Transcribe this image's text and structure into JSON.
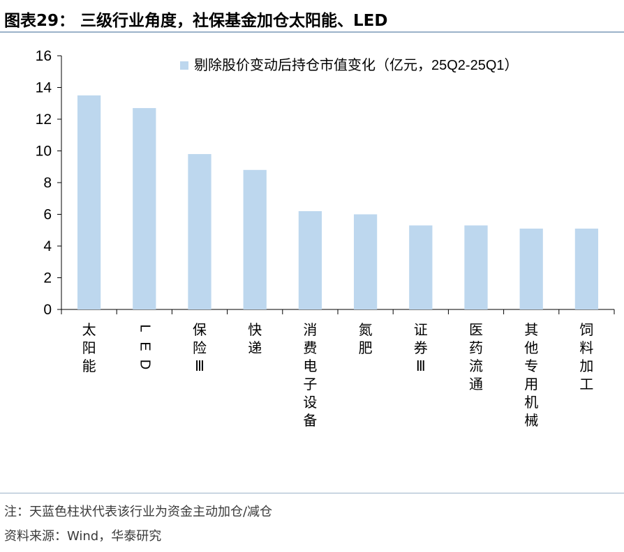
{
  "figure": {
    "title": "图表29： 三级行业角度，社保基金加仓太阳能、LED",
    "note": "注：天蓝色柱状代表该行业为资金主动加仓/减仓",
    "source": "资料来源：Wind，华泰研究"
  },
  "chart_data": {
    "type": "bar",
    "categories": [
      "太阳能",
      "LED",
      "保险Ⅲ",
      "快递",
      "消费电子设备",
      "氮肥",
      "证券Ⅲ",
      "医药流通",
      "其他专用机械",
      "饲料加工"
    ],
    "series": [
      {
        "name": "剔除股价变动后持仓市值变化（亿元，25Q2-25Q1）",
        "values": [
          13.5,
          12.7,
          9.8,
          8.8,
          6.2,
          6.0,
          5.3,
          5.3,
          5.1,
          5.1
        ],
        "color": "#bdd7ee"
      }
    ],
    "ylim": [
      0,
      16
    ],
    "yticks": [
      0,
      2,
      4,
      6,
      8,
      10,
      12,
      14,
      16
    ],
    "xlabel": "",
    "ylabel": "",
    "grid": false,
    "legend": "top-right"
  }
}
